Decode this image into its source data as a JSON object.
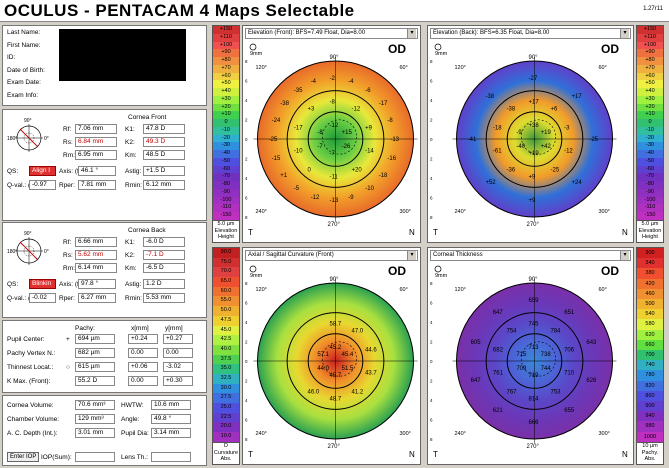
{
  "header": {
    "title": "OCULUS - PENTACAM 4 Maps Selectable",
    "version": "1.27r11"
  },
  "patient": {
    "labels": [
      "Last Name:",
      "First Name:",
      "ID:",
      "Date of Birth:",
      "Exam Date:",
      "Exam Info:"
    ]
  },
  "cornea_front": {
    "title": "Cornea Front",
    "rows": [
      {
        "l1": "Rf:",
        "v1": "7.06 mm",
        "l2": "K1:",
        "v2": "47.8 D",
        "red": false
      },
      {
        "l1": "Rs:",
        "v1": "6.84 mm",
        "l2": "K2:",
        "v2": "49.3 D",
        "red": true
      },
      {
        "l1": "Rm:",
        "v1": "6.95 mm",
        "l2": "Km:",
        "v2": "48.5 D",
        "red": false
      }
    ],
    "qs_label": "QS:",
    "qs_value": "Align I",
    "axis_label": "Axis: (flat)",
    "axis_value": "46.1 °",
    "astig_label": "Astig:",
    "astig_value": "+1.5 D",
    "qval_label": "Q-val.: (8mm)",
    "qval_value": "-0.97",
    "rper_label": "Rper:",
    "rper_value": "7.81 mm",
    "rmin_label": "Rmin:",
    "rmin_value": "6.12 mm",
    "compass": [
      "90°",
      "180°",
      "0°"
    ]
  },
  "cornea_back": {
    "title": "Cornea Back",
    "rows": [
      {
        "l1": "Rf:",
        "v1": "6.66 mm",
        "l2": "K1:",
        "v2": "-6.0 D",
        "red": false
      },
      {
        "l1": "Rs:",
        "v1": "5.62 mm",
        "l2": "K2:",
        "v2": "-7.1 D",
        "red": true
      },
      {
        "l1": "Rm:",
        "v1": "6.14 mm",
        "l2": "Km:",
        "v2": "-6.5 D",
        "red": false
      }
    ],
    "qs_label": "QS:",
    "qs_value": "Blinkin",
    "axis_label": "Axis: (flat)",
    "axis_value": "97.8 °",
    "astig_label": "Astig:",
    "astig_value": "1.2 D",
    "qval_label": "Q-val.: (8mm)",
    "qval_value": "-0.02",
    "rper_label": "Rper:",
    "rper_value": "6.27 mm",
    "rmin_label": "Rmin:",
    "rmin_value": "5.53 mm",
    "compass": [
      "90°",
      "180°",
      "0°"
    ]
  },
  "pachy": {
    "head_pachy": "Pachy:",
    "head_x": "x[mm]",
    "head_y": "y[mm]",
    "rows": [
      {
        "label": "Pupil Center:",
        "mark": "+",
        "v": "694 µm",
        "x": "+0.24",
        "y": "+0.27"
      },
      {
        "label": "Pachy Vertex N.:",
        "mark": "",
        "v": "682 µm",
        "x": "0.00",
        "y": "0.00"
      },
      {
        "label": "Thinnest Locat.:",
        "mark": "○",
        "v": "615 µm",
        "x": "+0.06",
        "y": "-3.02"
      },
      {
        "label": "K Max. (Front):",
        "mark": "",
        "v": "55.2 D",
        "x": "0.00",
        "y": "+0.30"
      }
    ]
  },
  "misc": {
    "rows": [
      {
        "l1": "Cornea Volume:",
        "v1": "70.6 mm³",
        "l2": "HWTW:",
        "v2": "10.6 mm"
      },
      {
        "l1": "Chamber Volume:",
        "v1": "129 mm³",
        "l2": "Angle:",
        "v2": "49.8 °"
      },
      {
        "l1": "A. C. Depth (Int.):",
        "v1": "3.01 mm",
        "l2": "Pupil Dia:",
        "v2": "3.14 mm"
      }
    ],
    "btn_iop": "Enter IOP",
    "iop_label": "IOP(Sum):",
    "lens_label": "Lens Th.:"
  },
  "scales": {
    "elevation": {
      "values": [
        "+150",
        "+110",
        "+100",
        "+90",
        "+80",
        "+70",
        "+60",
        "+50",
        "+40",
        "+30",
        "+20",
        "+10",
        "0",
        "-10",
        "-20",
        "-30",
        "-40",
        "-50",
        "-60",
        "-70",
        "-80",
        "-90",
        "-100",
        "-110",
        "-150"
      ],
      "foot": [
        "5.0 µm",
        "Elevation",
        "Height"
      ]
    },
    "curvature": {
      "values": [
        "90.0",
        "75.0",
        "70.0",
        "65.0",
        "60.0",
        "55.0",
        "50.0",
        "47.5",
        "45.0",
        "42.5",
        "40.0",
        "37.5",
        "35.0",
        "32.5",
        "30.0",
        "27.5",
        "25.0",
        "22.5",
        "20.0",
        "10.0"
      ],
      "foot": [
        "D",
        "Curvature",
        "Abs."
      ]
    },
    "pachy": {
      "values": [
        "300",
        "340",
        "380",
        "420",
        "460",
        "500",
        "540",
        "580",
        "620",
        "660",
        "700",
        "740",
        "780",
        "820",
        "860",
        "900",
        "940",
        "980",
        "1000"
      ],
      "foot": [
        "10 µm",
        "Pachy.",
        "Abs."
      ]
    }
  },
  "maps": {
    "front_elev": {
      "title": "Elevation (Front): BFS=7.49 Float, Dia=8.00",
      "od": "OD",
      "labels": [
        "-12",
        "+15",
        "-26",
        "-7",
        "-7",
        "-8",
        "-8",
        "-12",
        "+9",
        "-14",
        "+20",
        "-11",
        "0",
        "-10",
        "-17",
        "+3",
        "-2",
        "-4",
        "-6",
        "-17",
        "-8",
        "-13",
        "-16",
        "-18",
        "-10",
        "-9",
        "-13",
        "-12",
        "-5",
        "+1",
        "-15",
        "-25",
        "-24",
        "-38",
        "-35",
        "-4"
      ]
    },
    "back_elev": {
      "title": "Elevation (Back): BFS=6.35 Float, Dia=8.00",
      "od": "OD",
      "labels": [
        "+38",
        "+19",
        "+42",
        "+19",
        "-40",
        "-9",
        "+17",
        "+6",
        "-3",
        "-12",
        "-25",
        "+9",
        "-36",
        "-61",
        "-18",
        "-38",
        "-27",
        "+17",
        "-25",
        "+24",
        "+9",
        "+52",
        "-41",
        "-38"
      ]
    },
    "curvature": {
      "title": "Axial / Sagittal Curvature (Front)",
      "od": "OD",
      "labels": [
        "45.2",
        "45.4",
        "51.5",
        "45.7",
        "44.0",
        "57.1",
        "58.7",
        "47.0",
        "44.6",
        "43.7",
        "41.2",
        "48.7",
        "46.0"
      ]
    },
    "thickness": {
      "title": "Corneal Thickness",
      "od": "OD",
      "labels": [
        "713",
        "738",
        "744",
        "719",
        "709",
        "715",
        "745",
        "784",
        "706",
        "710",
        "753",
        "814",
        "767",
        "761",
        "682",
        "754",
        "659",
        "651",
        "643",
        "626",
        "655",
        "666",
        "621",
        "647",
        "605",
        "647"
      ]
    },
    "axis_labels": {
      "top": "90°",
      "bottom": "270°",
      "left": "T",
      "right": "N",
      "tl": "120°",
      "tr": "60°",
      "bl": "240°",
      "br": "300°",
      "left_mid": "180°",
      "right_mid": "0°",
      "mm": "9mm"
    }
  },
  "colors": {
    "accent": "#c00000"
  }
}
